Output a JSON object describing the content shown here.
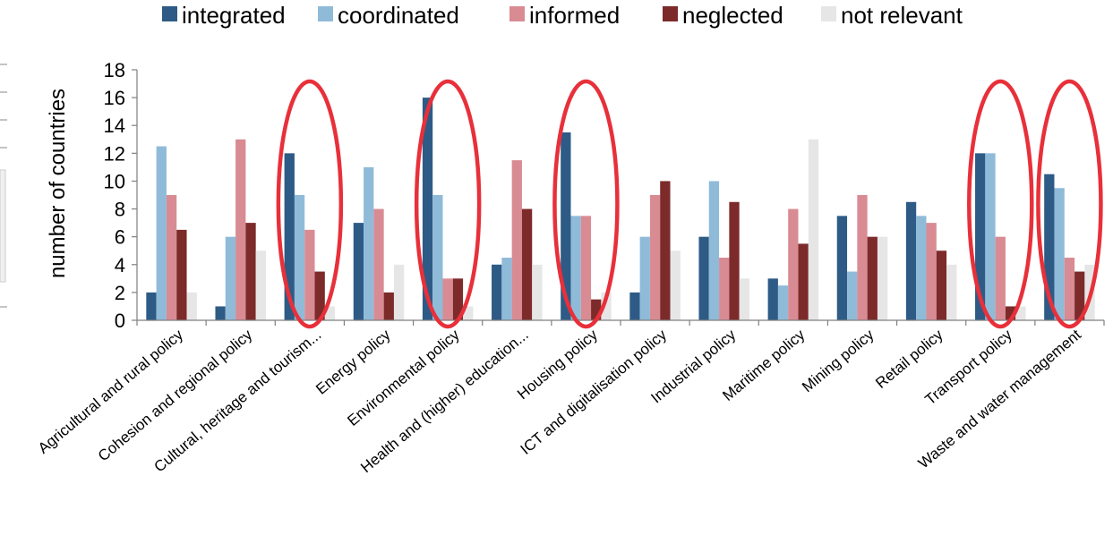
{
  "chart_data": {
    "type": "bar",
    "ylabel": "number of countries",
    "ylim": [
      0,
      18
    ],
    "yticks": [
      0,
      2,
      4,
      6,
      8,
      10,
      12,
      14,
      16,
      18
    ],
    "legend_position": "top",
    "categories": [
      "Agricultural and rural policy",
      "Cohesion and regional policy",
      "Cultural, heritage and tourism...",
      "Energy policy",
      "Environmental policy",
      "Health and (higher) education...",
      "Housing policy",
      "ICT and digitalisation policy",
      "Industrial policy",
      "Maritime policy",
      "Mining policy",
      "Retail policy",
      "Transport policy",
      "Waste and water management"
    ],
    "series": [
      {
        "name": "integrated",
        "color": "#2e5b86",
        "values": [
          2,
          1,
          12,
          7,
          16,
          4,
          13.5,
          2,
          6,
          3,
          7.5,
          8.5,
          12,
          10.5
        ]
      },
      {
        "name": "coordinated",
        "color": "#8fbbd9",
        "values": [
          12.5,
          6,
          9,
          11,
          9,
          4.5,
          7.5,
          6,
          10,
          2.5,
          3.5,
          7.5,
          12,
          9.5
        ]
      },
      {
        "name": "informed",
        "color": "#d98b93",
        "values": [
          9,
          13,
          6.5,
          8,
          3,
          11.5,
          7.5,
          9,
          4.5,
          8,
          9,
          7,
          6,
          4.5
        ]
      },
      {
        "name": "neglected",
        "color": "#7d2a2a",
        "values": [
          6.5,
          7,
          3.5,
          2,
          3,
          8,
          1.5,
          10,
          8.5,
          5.5,
          6,
          5,
          1,
          3.5
        ]
      },
      {
        "name": "not relevant",
        "color": "#e6e6e6",
        "values": [
          2,
          5,
          1,
          4,
          1,
          4,
          2,
          5,
          3,
          13,
          6,
          4,
          1,
          4
        ]
      }
    ],
    "highlighted_categories": [
      "Cultural, heritage and tourism...",
      "Environmental policy",
      "Housing policy",
      "Transport policy",
      "Waste and water management"
    ],
    "highlight_color": "#e8303a"
  }
}
